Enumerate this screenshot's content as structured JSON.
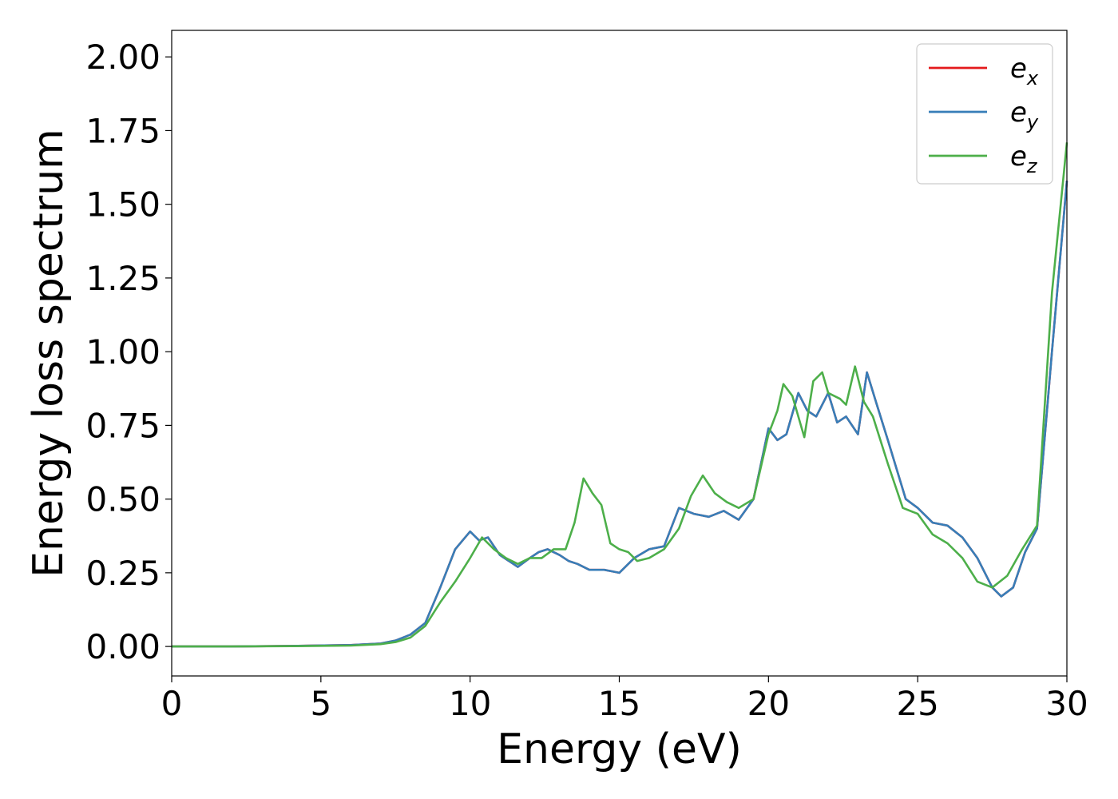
{
  "chart_data": {
    "type": "line",
    "xlabel": "Energy (eV)",
    "ylabel": "Energy loss spectrum",
    "xlim": [
      0,
      30
    ],
    "ylim": [
      -0.1,
      2.09
    ],
    "xticks": [
      0,
      5,
      10,
      15,
      20,
      25,
      30
    ],
    "xtick_labels": [
      "0",
      "5",
      "10",
      "15",
      "20",
      "25",
      "30"
    ],
    "yticks": [
      0.0,
      0.25,
      0.5,
      0.75,
      1.0,
      1.25,
      1.5,
      1.75,
      2.0
    ],
    "ytick_labels": [
      "0.00",
      "0.25",
      "0.50",
      "0.75",
      "1.00",
      "1.25",
      "1.50",
      "1.75",
      "2.00"
    ],
    "grid": false,
    "legend_position": "top-right",
    "series": [
      {
        "name": "e_x",
        "label_base": "e",
        "label_sub": "x",
        "color": "#e41a1c",
        "x": [
          0,
          2,
          4,
          6,
          7,
          7.5,
          8,
          8.5,
          9,
          9.5,
          10,
          10.3,
          10.6,
          11,
          11.3,
          11.6,
          12,
          12.3,
          12.6,
          13,
          13.3,
          13.6,
          14,
          14.5,
          15,
          15.5,
          16,
          16.5,
          17,
          17.5,
          18,
          18.5,
          19,
          19.5,
          20,
          20.3,
          20.6,
          21,
          21.3,
          21.6,
          22,
          22.3,
          22.6,
          23,
          23.3,
          23.6,
          24,
          24.3,
          24.6,
          25,
          25.5,
          26,
          26.5,
          27,
          27.5,
          27.8,
          28.2,
          28.6,
          29,
          29.5,
          30
        ],
        "y": [
          0,
          0,
          0.002,
          0.005,
          0.01,
          0.02,
          0.04,
          0.08,
          0.2,
          0.33,
          0.39,
          0.36,
          0.37,
          0.31,
          0.29,
          0.27,
          0.3,
          0.32,
          0.33,
          0.31,
          0.29,
          0.28,
          0.26,
          0.26,
          0.25,
          0.3,
          0.33,
          0.34,
          0.47,
          0.45,
          0.44,
          0.46,
          0.43,
          0.5,
          0.74,
          0.7,
          0.72,
          0.86,
          0.8,
          0.78,
          0.86,
          0.76,
          0.78,
          0.72,
          0.93,
          0.83,
          0.7,
          0.6,
          0.5,
          0.47,
          0.42,
          0.41,
          0.37,
          0.3,
          0.2,
          0.17,
          0.2,
          0.32,
          0.4,
          1.0,
          1.58
        ]
      },
      {
        "name": "e_y",
        "label_base": "e",
        "label_sub": "y",
        "color": "#377eb8",
        "x": [
          0,
          2,
          4,
          6,
          7,
          7.5,
          8,
          8.5,
          9,
          9.5,
          10,
          10.3,
          10.6,
          11,
          11.3,
          11.6,
          12,
          12.3,
          12.6,
          13,
          13.3,
          13.6,
          14,
          14.5,
          15,
          15.5,
          16,
          16.5,
          17,
          17.5,
          18,
          18.5,
          19,
          19.5,
          20,
          20.3,
          20.6,
          21,
          21.3,
          21.6,
          22,
          22.3,
          22.6,
          23,
          23.3,
          23.6,
          24,
          24.3,
          24.6,
          25,
          25.5,
          26,
          26.5,
          27,
          27.5,
          27.8,
          28.2,
          28.6,
          29,
          29.5,
          30
        ],
        "y": [
          0,
          0,
          0.002,
          0.005,
          0.01,
          0.02,
          0.04,
          0.08,
          0.2,
          0.33,
          0.39,
          0.36,
          0.37,
          0.31,
          0.29,
          0.27,
          0.3,
          0.32,
          0.33,
          0.31,
          0.29,
          0.28,
          0.26,
          0.26,
          0.25,
          0.3,
          0.33,
          0.34,
          0.47,
          0.45,
          0.44,
          0.46,
          0.43,
          0.5,
          0.74,
          0.7,
          0.72,
          0.86,
          0.8,
          0.78,
          0.86,
          0.76,
          0.78,
          0.72,
          0.93,
          0.83,
          0.7,
          0.6,
          0.5,
          0.47,
          0.42,
          0.41,
          0.37,
          0.3,
          0.2,
          0.17,
          0.2,
          0.32,
          0.4,
          1.0,
          1.58
        ]
      },
      {
        "name": "e_z",
        "label_base": "e",
        "label_sub": "z",
        "color": "#4daf4a",
        "x": [
          0,
          2,
          4,
          6,
          7,
          7.5,
          8,
          8.5,
          9,
          9.5,
          10,
          10.4,
          10.8,
          11.2,
          11.6,
          12,
          12.4,
          12.8,
          13.2,
          13.5,
          13.8,
          14.1,
          14.4,
          14.7,
          15,
          15.3,
          15.6,
          16,
          16.5,
          17,
          17.4,
          17.8,
          18.2,
          18.6,
          19,
          19.5,
          20,
          20.3,
          20.5,
          20.8,
          21.2,
          21.5,
          21.8,
          22,
          22.4,
          22.6,
          22.9,
          23.2,
          23.5,
          24,
          24.5,
          25,
          25.5,
          26,
          26.5,
          27,
          27.5,
          28,
          28.5,
          29,
          29.5,
          30
        ],
        "y": [
          0,
          0,
          0.001,
          0.003,
          0.008,
          0.015,
          0.03,
          0.07,
          0.15,
          0.22,
          0.3,
          0.37,
          0.33,
          0.3,
          0.28,
          0.3,
          0.3,
          0.33,
          0.33,
          0.42,
          0.57,
          0.52,
          0.48,
          0.35,
          0.33,
          0.32,
          0.29,
          0.3,
          0.33,
          0.4,
          0.51,
          0.58,
          0.52,
          0.49,
          0.47,
          0.5,
          0.72,
          0.8,
          0.89,
          0.85,
          0.71,
          0.9,
          0.93,
          0.86,
          0.84,
          0.82,
          0.95,
          0.83,
          0.78,
          0.62,
          0.47,
          0.45,
          0.38,
          0.35,
          0.3,
          0.22,
          0.2,
          0.24,
          0.33,
          0.41,
          1.2,
          1.71
        ]
      }
    ]
  }
}
